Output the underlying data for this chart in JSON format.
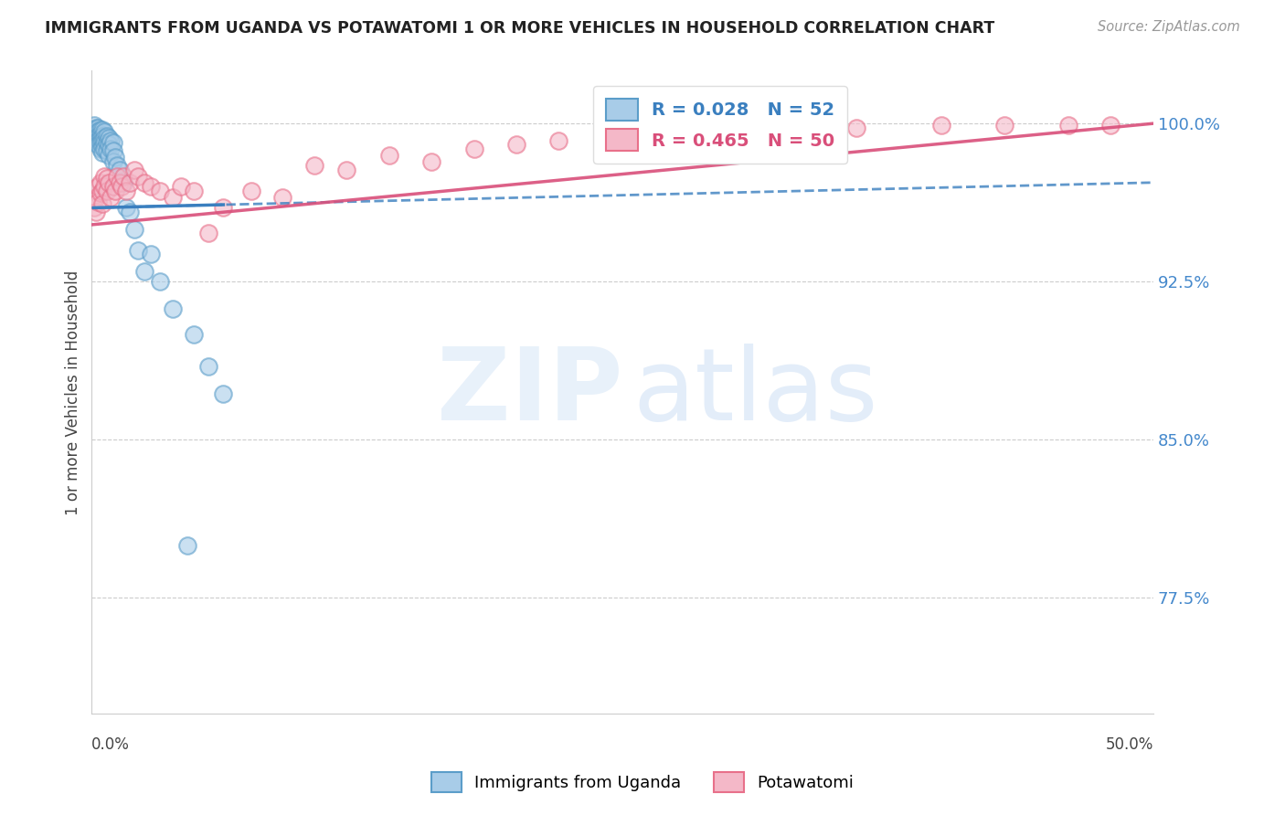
{
  "title": "IMMIGRANTS FROM UGANDA VS POTAWATOMI 1 OR MORE VEHICLES IN HOUSEHOLD CORRELATION CHART",
  "source": "Source: ZipAtlas.com",
  "ylabel": "1 or more Vehicles in Household",
  "ytick_labels": [
    "77.5%",
    "85.0%",
    "92.5%",
    "100.0%"
  ],
  "ytick_values": [
    0.775,
    0.85,
    0.925,
    1.0
  ],
  "xlim": [
    0.0,
    0.5
  ],
  "ylim": [
    0.72,
    1.025
  ],
  "legend_label_blue": "Immigrants from Uganda",
  "legend_label_pink": "Potawatomi",
  "blue_color": "#a8cce8",
  "pink_color": "#f4b8c8",
  "blue_edge_color": "#5b9dc9",
  "pink_edge_color": "#e8708a",
  "blue_line_color": "#3a7fbf",
  "pink_line_color": "#d94f7a",
  "blue_scatter_x": [
    0.001,
    0.001,
    0.002,
    0.002,
    0.002,
    0.002,
    0.003,
    0.003,
    0.003,
    0.003,
    0.003,
    0.004,
    0.004,
    0.004,
    0.004,
    0.004,
    0.005,
    0.005,
    0.005,
    0.005,
    0.005,
    0.006,
    0.006,
    0.006,
    0.006,
    0.007,
    0.007,
    0.007,
    0.008,
    0.008,
    0.008,
    0.009,
    0.009,
    0.01,
    0.01,
    0.01,
    0.011,
    0.012,
    0.013,
    0.015,
    0.016,
    0.018,
    0.02,
    0.022,
    0.025,
    0.028,
    0.032,
    0.038,
    0.048,
    0.055,
    0.062,
    0.045
  ],
  "blue_scatter_y": [
    0.999,
    0.997,
    0.998,
    0.996,
    0.995,
    0.993,
    0.998,
    0.996,
    0.994,
    0.992,
    0.99,
    0.997,
    0.995,
    0.993,
    0.991,
    0.988,
    0.997,
    0.994,
    0.992,
    0.989,
    0.986,
    0.996,
    0.993,
    0.991,
    0.988,
    0.994,
    0.991,
    0.987,
    0.993,
    0.99,
    0.985,
    0.992,
    0.988,
    0.991,
    0.987,
    0.982,
    0.984,
    0.98,
    0.978,
    0.972,
    0.96,
    0.958,
    0.95,
    0.94,
    0.93,
    0.938,
    0.925,
    0.912,
    0.9,
    0.885,
    0.872,
    0.8
  ],
  "pink_scatter_x": [
    0.001,
    0.002,
    0.002,
    0.003,
    0.003,
    0.004,
    0.004,
    0.005,
    0.005,
    0.006,
    0.006,
    0.007,
    0.007,
    0.008,
    0.009,
    0.01,
    0.011,
    0.012,
    0.013,
    0.014,
    0.015,
    0.016,
    0.018,
    0.02,
    0.022,
    0.025,
    0.028,
    0.032,
    0.038,
    0.042,
    0.048,
    0.055,
    0.062,
    0.075,
    0.09,
    0.105,
    0.12,
    0.14,
    0.16,
    0.18,
    0.2,
    0.22,
    0.25,
    0.28,
    0.32,
    0.36,
    0.4,
    0.43,
    0.46,
    0.48
  ],
  "pink_scatter_y": [
    0.96,
    0.965,
    0.958,
    0.97,
    0.963,
    0.972,
    0.967,
    0.968,
    0.962,
    0.975,
    0.97,
    0.974,
    0.968,
    0.972,
    0.965,
    0.97,
    0.968,
    0.975,
    0.972,
    0.97,
    0.975,
    0.968,
    0.972,
    0.978,
    0.975,
    0.972,
    0.97,
    0.968,
    0.965,
    0.97,
    0.968,
    0.948,
    0.96,
    0.968,
    0.965,
    0.98,
    0.978,
    0.985,
    0.982,
    0.988,
    0.99,
    0.992,
    0.995,
    0.996,
    0.998,
    0.998,
    0.999,
    0.999,
    0.999,
    0.999
  ],
  "blue_trendline_x": [
    0.0,
    0.5
  ],
  "blue_trendline_y": [
    0.96,
    0.972
  ],
  "pink_trendline_x": [
    0.0,
    0.5
  ],
  "pink_trendline_y": [
    0.952,
    1.0
  ]
}
